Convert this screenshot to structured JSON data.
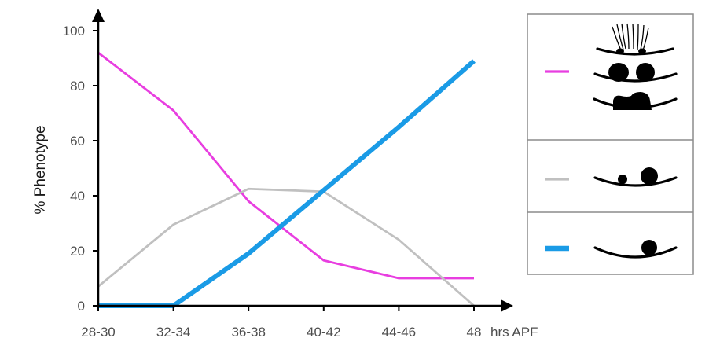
{
  "chart_data": {
    "type": "line",
    "title": "",
    "xlabel": "hrs APF",
    "ylabel": "% Phenotype",
    "categories": [
      "28-30",
      "32-34",
      "36-38",
      "40-42",
      "44-46",
      "48"
    ],
    "ylim": [
      0,
      100
    ],
    "yticks": [
      0,
      20,
      40,
      60,
      80,
      100
    ],
    "grid": false,
    "legend": "right",
    "series": [
      {
        "color": "#e83ee0",
        "values": [
          92,
          71,
          38,
          16.5,
          10,
          10
        ]
      },
      {
        "color": "#c0c0c0",
        "values": [
          7,
          29.5,
          42.5,
          41.5,
          24,
          0
        ]
      },
      {
        "color": "#1a9be6",
        "values": [
          0,
          0,
          19,
          42,
          65,
          89
        ]
      }
    ],
    "legend_entries": [
      {
        "color": "#e83ee0",
        "icon": "multi-cell-phenotype-glyphs"
      },
      {
        "color": "#c0c0c0",
        "icon": "two-blob-phenotype-glyph"
      },
      {
        "color": "#1a9be6",
        "icon": "single-blob-phenotype-glyph"
      }
    ]
  }
}
